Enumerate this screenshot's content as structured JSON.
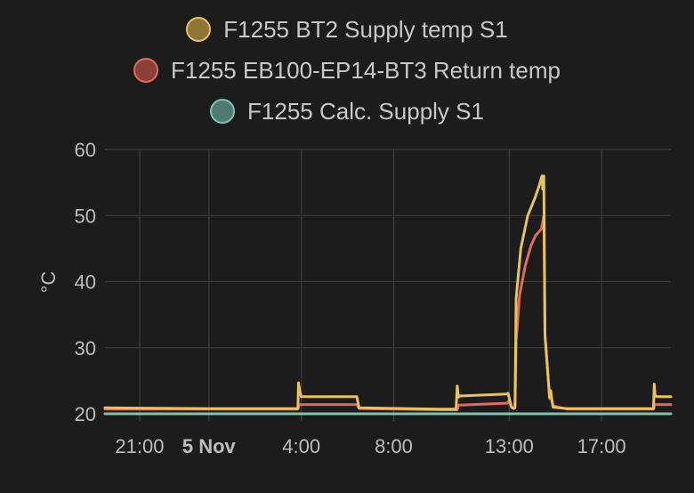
{
  "legend": [
    {
      "label": "F1255 BT2 Supply temp S1",
      "color": "#e8c35a",
      "fill": "#8d7636"
    },
    {
      "label": "F1255 EB100-EP14-BT3 Return temp",
      "color": "#e06b5c",
      "fill": "#8a3f37"
    },
    {
      "label": "F1255 Calc. Supply S1",
      "color": "#7fc2b0",
      "fill": "#4f7a6e"
    }
  ],
  "chart_data": {
    "type": "line",
    "ylabel": "°C",
    "ylim": [
      20,
      60
    ],
    "xlim": [
      19.5,
      44
    ],
    "y_ticks": [
      20,
      30,
      40,
      50,
      60
    ],
    "x_ticks": [
      {
        "value": 21,
        "label": "21:00",
        "bold": false
      },
      {
        "value": 24,
        "label": "5 Nov",
        "bold": true
      },
      {
        "value": 28,
        "label": "4:00",
        "bold": false
      },
      {
        "value": 32,
        "label": "8:00",
        "bold": false
      },
      {
        "value": 37,
        "label": "13:00",
        "bold": false
      },
      {
        "value": 41,
        "label": "17:00",
        "bold": false
      }
    ],
    "grid": true,
    "series": [
      {
        "name": "F1255 BT2 Supply temp S1",
        "color": "#e8c35a",
        "x": [
          19.5,
          23.9,
          27.85,
          27.88,
          27.95,
          28.0,
          30.4,
          30.5,
          34.0,
          34.7,
          34.75,
          34.8,
          34.85,
          36.9,
          36.95,
          37.1,
          37.2,
          37.25,
          37.3,
          37.5,
          37.8,
          38.1,
          38.3,
          38.42,
          38.45,
          38.5,
          38.55,
          38.75,
          38.8,
          38.85,
          38.9,
          39.5,
          43.25,
          43.28,
          43.32,
          43.4,
          44.0
        ],
        "y": [
          20.9,
          20.8,
          20.8,
          24.7,
          23.1,
          22.6,
          22.6,
          20.9,
          20.7,
          20.7,
          24.2,
          22.5,
          22.7,
          23.0,
          23.1,
          21.0,
          20.8,
          21.0,
          37.5,
          45.0,
          50.0,
          52.5,
          54.5,
          56.0,
          54.0,
          56.0,
          32.0,
          22.5,
          23.5,
          22.0,
          21.0,
          20.8,
          20.8,
          24.5,
          22.7,
          22.6,
          22.6
        ]
      },
      {
        "name": "F1255 EB100-EP14-BT3 Return temp",
        "color": "#e06b5c",
        "x": [
          19.5,
          23.9,
          27.85,
          27.9,
          30.4,
          30.5,
          34.0,
          34.75,
          34.8,
          36.9,
          37.0,
          37.1,
          37.2,
          37.25,
          37.3,
          37.45,
          37.7,
          37.95,
          38.15,
          38.4,
          38.5,
          38.55,
          38.75,
          38.8,
          38.9,
          39.5,
          43.25,
          43.3,
          44.0
        ],
        "y": [
          20.7,
          20.7,
          20.7,
          21.4,
          21.4,
          20.8,
          20.6,
          20.6,
          21.3,
          21.6,
          22.0,
          21.0,
          20.8,
          20.9,
          31.0,
          38.0,
          42.5,
          45.5,
          47.0,
          48.0,
          50.0,
          32.0,
          22.3,
          23.0,
          21.2,
          20.7,
          20.7,
          21.4,
          21.4
        ]
      },
      {
        "name": "F1255 Calc. Supply S1",
        "color": "#7fc2b0",
        "x": [
          19.5,
          44.0
        ],
        "y": [
          20.0,
          20.0
        ]
      }
    ]
  }
}
